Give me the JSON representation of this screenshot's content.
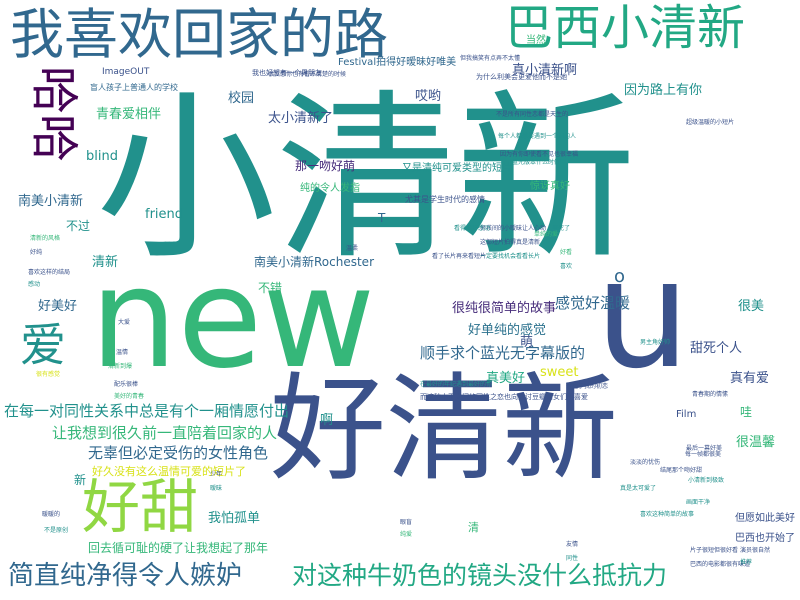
{
  "palette": {
    "teal": "#21918c",
    "green": "#35b779",
    "navy": "#3b528b",
    "purple": "#440154",
    "indigo": "#31688e",
    "lime": "#90d743",
    "yellow": "#d8e219",
    "seafoam": "#22a884",
    "blue": "#2c728e",
    "deep": "#472d7b"
  },
  "words": [
    {
      "text": "小清新"
    },
    {
      "text": "new"
    },
    {
      "text": "好清新"
    },
    {
      "text": "u"
    },
    {
      "text": "我喜欢回家的路"
    },
    {
      "text": "巴西小清新"
    },
    {
      "text": "哈哈"
    },
    {
      "text": "好甜"
    },
    {
      "text": "简直纯净得令人嫉妒"
    },
    {
      "text": "对这种牛奶色的镜头没什么抵抗力"
    },
    {
      "text": "爱"
    },
    {
      "text": "在每一对同性关系中总是有个一厢情愿付出"
    },
    {
      "text": "让我想到很久前一直陪着回家的人"
    },
    {
      "text": "无辜但必定受伤的女性角色"
    },
    {
      "text": "顺手求个蓝光无字幕版的"
    },
    {
      "text": "感觉好温暖"
    },
    {
      "text": "好单纯的感觉"
    },
    {
      "text": "很纯很简单的故事"
    },
    {
      "text": "真美好"
    },
    {
      "text": "甜死个人"
    },
    {
      "text": "真有爱"
    },
    {
      "text": "很温馨"
    },
    {
      "text": "sweet"
    },
    {
      "text": "好美好"
    },
    {
      "text": "清新"
    },
    {
      "text": "不错"
    },
    {
      "text": "南美小清新"
    },
    {
      "text": "friend"
    },
    {
      "text": "blind"
    },
    {
      "text": "青春爱相伴"
    },
    {
      "text": "太小清新了"
    },
    {
      "text": "真小清新啊"
    },
    {
      "text": "因为路上有你"
    },
    {
      "text": "哎哟"
    },
    {
      "text": "校园"
    },
    {
      "text": "那一吻好萌"
    },
    {
      "text": "南美小清新Rochester"
    },
    {
      "text": "我怕孤单"
    },
    {
      "text": "好久没有这么温情可爱的短片了"
    },
    {
      "text": "回去循可耻的硬了让我想起了那年"
    },
    {
      "text": "很美"
    },
    {
      "text": "萌"
    },
    {
      "text": "啊"
    },
    {
      "text": "哇"
    },
    {
      "text": "清"
    },
    {
      "text": "Film"
    },
    {
      "text": "当然"
    },
    {
      "text": "不过"
    },
    {
      "text": "新"
    },
    {
      "text": "o"
    },
    {
      "text": "T"
    },
    {
      "text": "Festival拍得好暧昧好唯美"
    },
    {
      "text": "又是清纯可爱类型的短片"
    },
    {
      "text": "我也好想有一个男朋友"
    },
    {
      "text": "纯的令人发指"
    },
    {
      "text": "尤其是学生时代的感情"
    },
    {
      "text": "惊讶真好"
    },
    {
      "text": "ImageOUT"
    },
    {
      "text": "盲人孩子上普通人的学校"
    },
    {
      "text": "很反感你也有看不清楚的时候"
    },
    {
      "text": "但愿如此美好"
    },
    {
      "text": "巴西也开始了"
    },
    {
      "text": "为什么利美会更爱他而不是她"
    },
    {
      "text": "但我搞笑有点弄不太懂"
    },
    {
      "text": "不是所有同性恋都是天生的"
    },
    {
      "text": "每个人都想要遇到一个对的人"
    },
    {
      "text": "因为有你即使看不见也很幸福"
    },
    {
      "text": "而这种小正太间的同性之恋也向来讨豆瓣腐女们的喜爱"
    },
    {
      "text": "在最好的年纪遇到最好的你"
    },
    {
      "text": "男孩间的小暧昧让人心动"
    },
    {
      "text": "这部短片拍得真是清新"
    },
    {
      "text": "一定要找机会看看长片"
    },
    {
      "text": "结尾那个吻好甜"
    },
    {
      "text": "配乐很棒"
    },
    {
      "text": "萌死了"
    },
    {
      "text": "好看"
    },
    {
      "text": "大爱"
    },
    {
      "text": "清新到爆"
    },
    {
      "text": "喜欢"
    },
    {
      "text": "超级温暖的小短片"
    },
    {
      "text": "蓝光版本什么时候出"
    },
    {
      "text": "想起了我的初恋"
    },
    {
      "text": "男主角好帅"
    },
    {
      "text": "看了长片再来看短片"
    },
    {
      "text": "每一帧都很美"
    },
    {
      "text": "单纯的爱"
    },
    {
      "text": "青春期的情愫"
    },
    {
      "text": "看得我好感动"
    },
    {
      "text": "淡淡的忧伤"
    },
    {
      "text": "小清新到极致"
    },
    {
      "text": "最后一幕好美"
    },
    {
      "text": "真是太可爱了"
    },
    {
      "text": "片子很短但很好看"
    },
    {
      "text": "喜欢这种简单的故事"
    },
    {
      "text": "巴西的电影都很有味道"
    },
    {
      "text": "画面干净"
    },
    {
      "text": "演员很自然"
    },
    {
      "text": "推荐"
    },
    {
      "text": "很有感觉"
    },
    {
      "text": "温情"
    },
    {
      "text": "美好的青春"
    },
    {
      "text": "喜欢这样的结局"
    },
    {
      "text": "感动"
    },
    {
      "text": "好纯"
    },
    {
      "text": "清新的风格"
    },
    {
      "text": "暖暖的"
    },
    {
      "text": "不是原创"
    },
    {
      "text": "友情"
    },
    {
      "text": "同性"
    },
    {
      "text": "少年"
    },
    {
      "text": "暧昧"
    },
    {
      "text": "眼盲"
    },
    {
      "text": "纯爱"
    },
    {
      "text": "温柔"
    }
  ]
}
